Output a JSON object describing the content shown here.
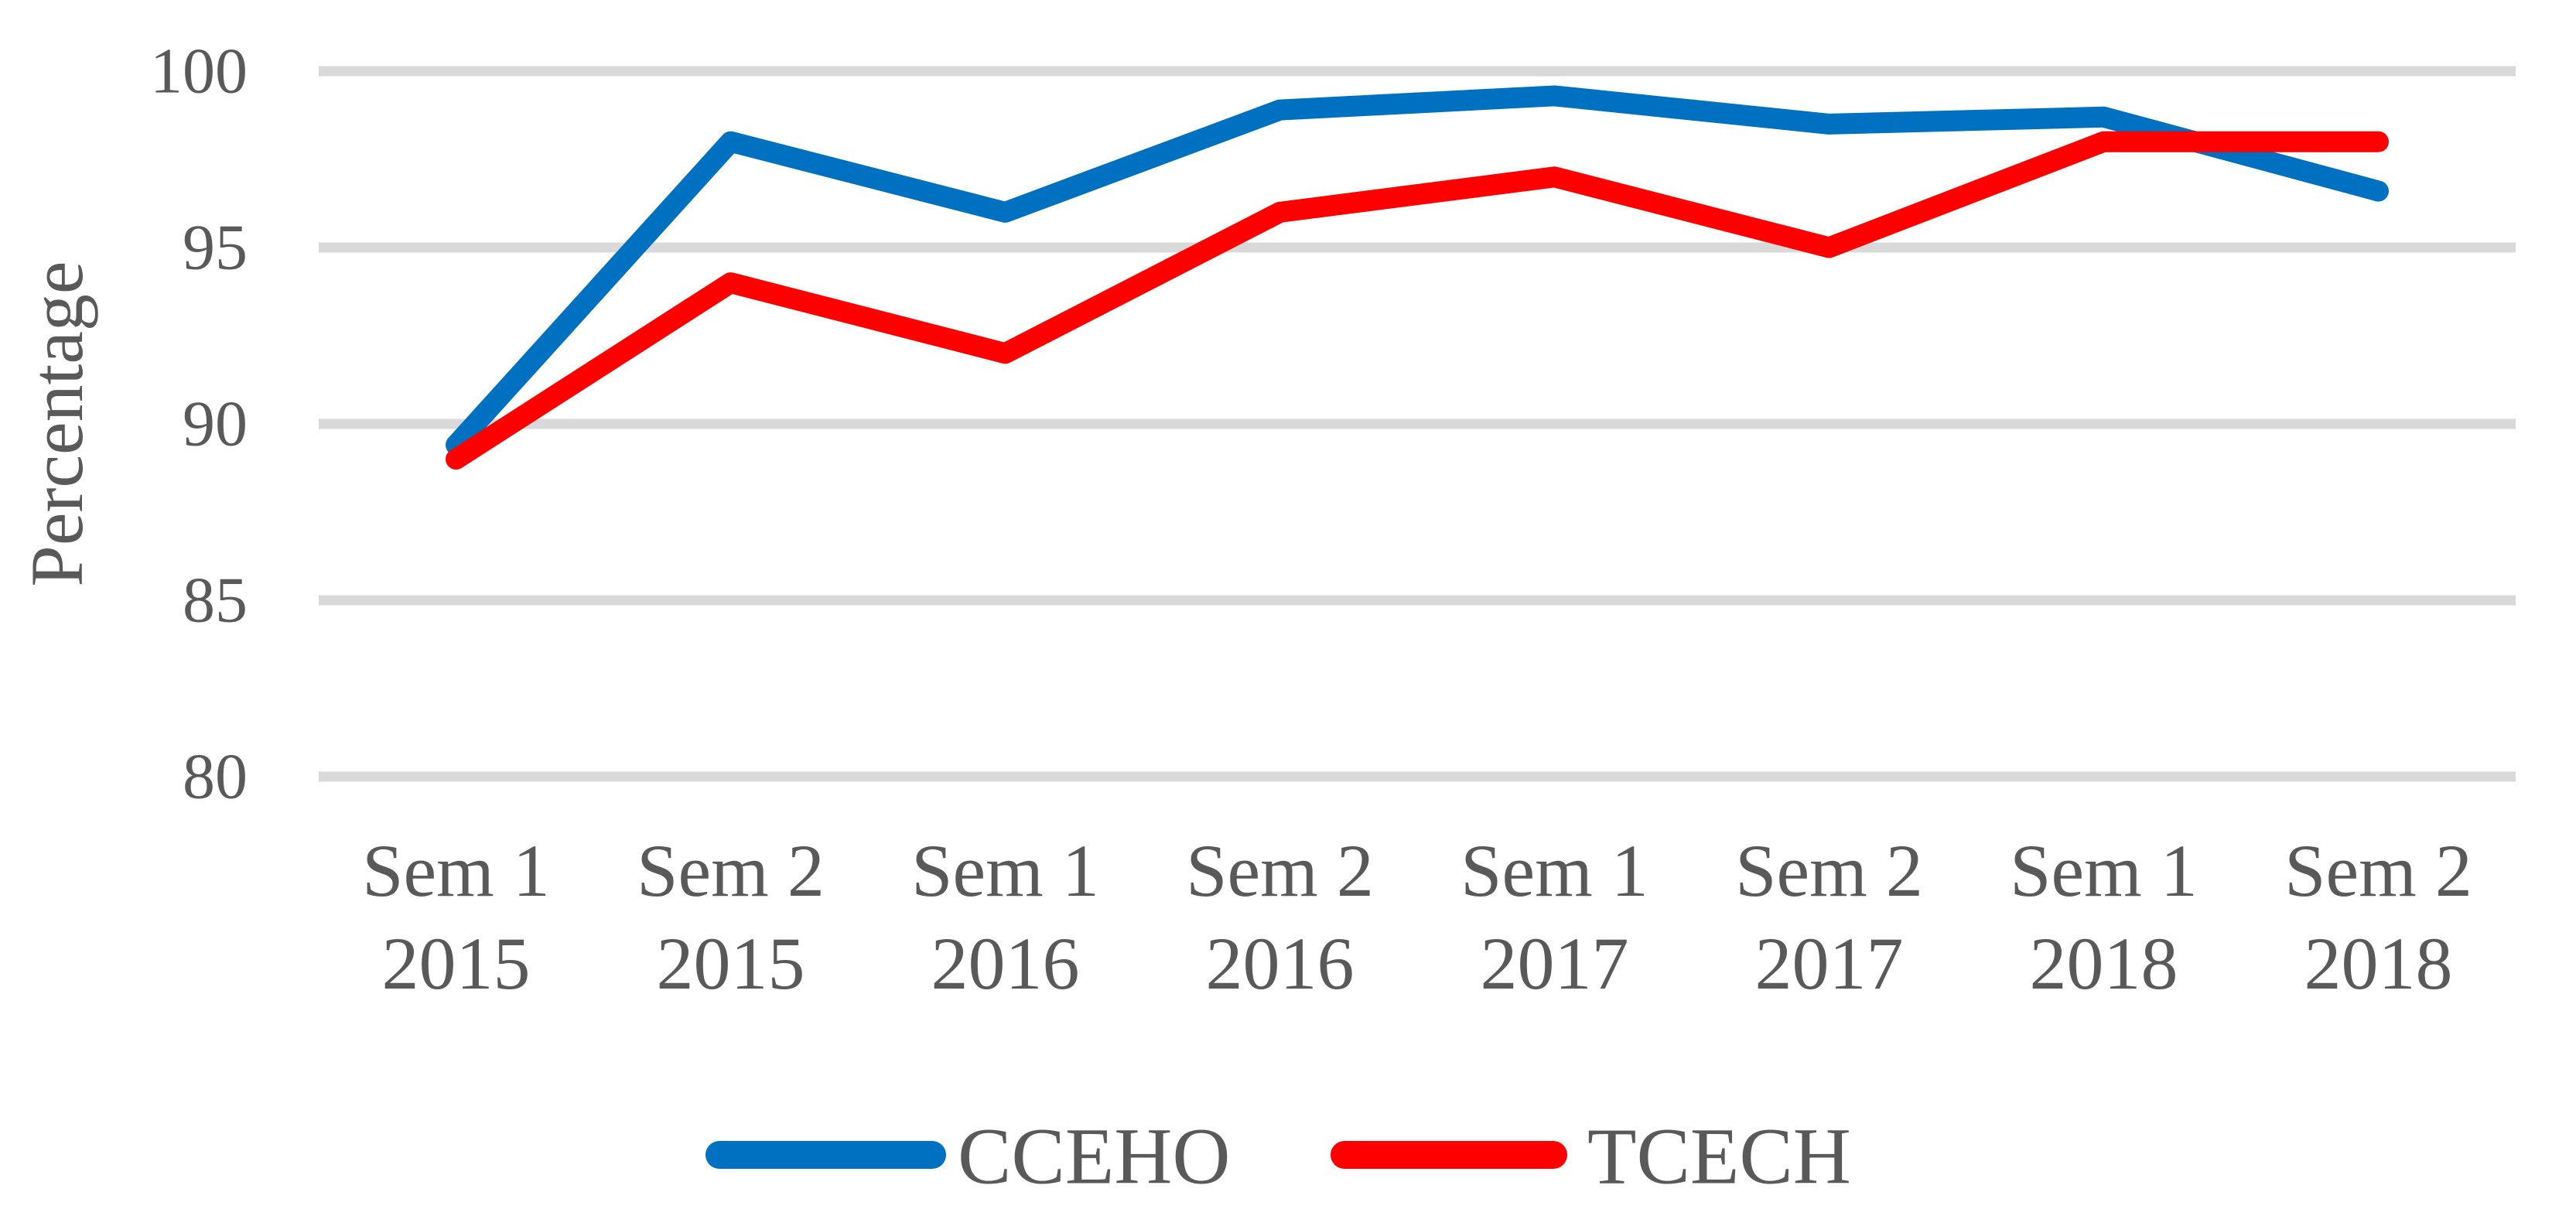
{
  "figure": {
    "background_color": "#FFFFFF",
    "text_color": "#595959",
    "gridline_color": "#D9D9D9"
  },
  "chart_data": {
    "type": "line",
    "title": "",
    "xlabel": "",
    "ylabel": "Percentage",
    "ylim": [
      80,
      100
    ],
    "yticks": [
      100,
      95,
      90,
      85,
      80
    ],
    "grid": "horizontal",
    "legend_position": "bottom-center",
    "categories": [
      "Sem 1 2015",
      "Sem 2 2015",
      "Sem 1 2016",
      "Sem 2 2016",
      "Sem 1 2017",
      "Sem 2 2017",
      "Sem 1 2018",
      "Sem 2 2018"
    ],
    "xtick_lines": [
      [
        "Sem 1",
        "2015"
      ],
      [
        "Sem 2",
        "2015"
      ],
      [
        "Sem 1",
        "2016"
      ],
      [
        "Sem 2",
        "2016"
      ],
      [
        "Sem 1",
        "2017"
      ],
      [
        "Sem 2",
        "2017"
      ],
      [
        "Sem 1",
        "2018"
      ],
      [
        "Sem 2",
        "2018"
      ]
    ],
    "series": [
      {
        "name": "CCEHO",
        "color": "#0070C0",
        "values": [
          89.4,
          98.0,
          96.0,
          98.9,
          99.3,
          98.5,
          98.7,
          96.6
        ]
      },
      {
        "name": "TCECH",
        "color": "#FF0000",
        "values": [
          89.0,
          94.0,
          92.0,
          96.0,
          97.0,
          95.0,
          98.0,
          98.0
        ]
      }
    ]
  }
}
